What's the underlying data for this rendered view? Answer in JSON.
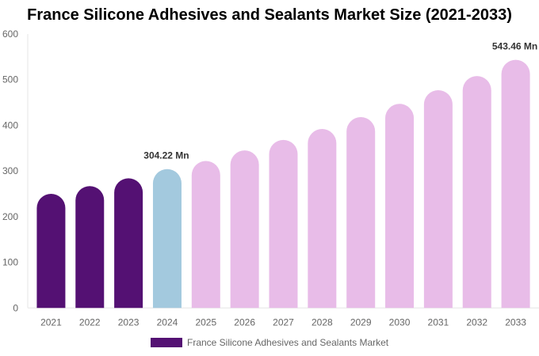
{
  "chart_data": {
    "type": "bar",
    "title": "France Silicone Adhesives and Sealants Market Size (2021-2033)",
    "categories": [
      "2021",
      "2022",
      "2023",
      "2024",
      "2025",
      "2026",
      "2027",
      "2028",
      "2029",
      "2030",
      "2031",
      "2032",
      "2033"
    ],
    "series": [
      {
        "name": "France Silicone Adhesives and Sealants Market",
        "values": [
          250,
          267,
          284,
          304.22,
          322,
          345,
          368,
          392,
          418,
          447,
          477,
          508,
          543.46
        ]
      }
    ],
    "data_labels": [
      {
        "category": "2024",
        "text": "304.22 Mn"
      },
      {
        "category": "2033",
        "text": "543.46 Mn"
      }
    ],
    "ylim": [
      0,
      600
    ],
    "yticks": [
      0,
      100,
      200,
      300,
      400,
      500,
      600
    ],
    "grid": false,
    "legend": "bottom",
    "colors": {
      "historical": "#541173",
      "current": "#a3c9de",
      "forecast": "#e8bce8"
    },
    "bar_colors_by_category": [
      "historical",
      "historical",
      "historical",
      "current",
      "forecast",
      "forecast",
      "forecast",
      "forecast",
      "forecast",
      "forecast",
      "forecast",
      "forecast",
      "forecast"
    ]
  }
}
